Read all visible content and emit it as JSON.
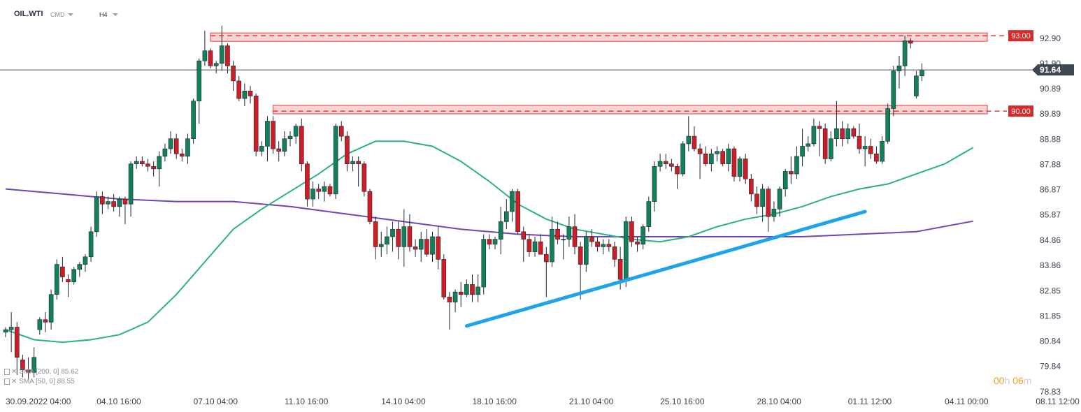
{
  "header": {
    "symbol": "OIL.WTI",
    "instrument_type": "CMD",
    "timeframe": "H4"
  },
  "legend": [
    {
      "name": "SMA",
      "params": "[200, 0]",
      "value": "85.62"
    },
    {
      "name": "SMA",
      "params": "[50, 0]",
      "value": "88.55"
    }
  ],
  "timer": {
    "hours": "00",
    "h_unit": "h",
    "minutes": "06",
    "m_unit": "m"
  },
  "icons": [
    "chevron-down-icon",
    "indicator-icon",
    "close-icon"
  ],
  "colors": {
    "bull": "#12815a",
    "bear": "#d01c24",
    "sma50": "#2bb37d",
    "sma200": "#7044b8",
    "trendline": "#1fa4e8",
    "resistance": "#e23b3b",
    "price_badge": "#3f4752"
  },
  "chart_data": {
    "type": "candlestick",
    "ylim": [
      78.83,
      94.2
    ],
    "y_ticks": [
      "92.90",
      "91.90",
      "90.89",
      "89.89",
      "88.88",
      "87.88",
      "86.87",
      "85.87",
      "84.86",
      "83.86",
      "82.85",
      "81.85",
      "80.84",
      "79.84",
      "78.83"
    ],
    "x_ticks": [
      "30.09.2022 04:00",
      "04.10 16:00",
      "07.10 04:00",
      "11.10 16:00",
      "14.10 04:00",
      "18.10 16:00",
      "21.10 04:00",
      "25.10 16:00",
      "28.10 04:00",
      "01.11 12:00",
      "04.11 00:00",
      "08.11 12:00"
    ],
    "x_tick_bar_index": [
      0,
      16,
      33,
      49,
      66,
      82,
      99,
      115,
      132,
      148,
      165,
      181
    ],
    "bars_total": 205,
    "current_price": {
      "label": "91.64",
      "value": 91.64
    },
    "levels": [
      {
        "label": "93.00",
        "value": 93.0,
        "zone_bottom": 92.88,
        "zone_top": 93.0,
        "zone_start_bar": 36
      },
      {
        "label": "90.00",
        "value": 90.0,
        "zone_bottom": 89.89,
        "zone_top": 90.12,
        "zone_start_bar": 47
      }
    ],
    "trendline": {
      "x": [
        81,
        151
      ],
      "y": [
        81.45,
        86.0
      ]
    },
    "sma50": {
      "x": [
        0,
        5,
        10,
        15,
        20,
        25,
        30,
        35,
        40,
        45,
        50,
        55,
        60,
        65,
        70,
        75,
        80,
        85,
        90,
        95,
        100,
        105,
        110,
        115,
        120,
        125,
        130,
        135,
        140,
        145,
        150,
        155,
        160,
        165,
        170
      ],
      "y": [
        81.3,
        80.9,
        80.8,
        80.9,
        81.1,
        81.6,
        82.7,
        84.0,
        85.3,
        86.1,
        86.8,
        87.5,
        88.3,
        88.8,
        88.8,
        88.6,
        88.0,
        87.2,
        86.3,
        85.7,
        85.3,
        85.1,
        84.9,
        84.8,
        85.0,
        85.4,
        85.7,
        85.9,
        86.2,
        86.6,
        86.9,
        87.1,
        87.5,
        87.9,
        88.55
      ]
    },
    "sma200": {
      "x": [
        0,
        10,
        20,
        30,
        40,
        50,
        60,
        70,
        80,
        90,
        100,
        110,
        120,
        130,
        140,
        150,
        160,
        170
      ],
      "y": [
        86.9,
        86.7,
        86.5,
        86.4,
        86.4,
        86.2,
        85.9,
        85.6,
        85.3,
        85.1,
        85.0,
        85.0,
        85.0,
        85.0,
        85.0,
        85.1,
        85.2,
        85.62
      ]
    },
    "candles": [
      [
        81.2,
        81.4,
        81.0,
        81.3
      ],
      [
        81.3,
        82.0,
        80.4,
        81.4
      ],
      [
        81.4,
        81.6,
        79.5,
        80.2
      ],
      [
        80.1,
        80.3,
        79.4,
        79.7
      ],
      [
        79.7,
        80.2,
        79.3,
        79.6
      ],
      [
        79.6,
        80.6,
        79.4,
        80.2
      ],
      [
        81.3,
        81.8,
        81.1,
        81.7
      ],
      [
        81.7,
        82.0,
        81.2,
        81.6
      ],
      [
        81.6,
        82.9,
        81.3,
        82.7
      ],
      [
        82.7,
        84.1,
        82.5,
        83.9
      ],
      [
        83.8,
        84.2,
        83.2,
        83.4
      ],
      [
        83.3,
        83.5,
        82.6,
        83.2
      ],
      [
        83.2,
        83.8,
        83.1,
        83.7
      ],
      [
        83.7,
        84.0,
        83.4,
        83.9
      ],
      [
        83.9,
        84.3,
        83.6,
        84.2
      ],
      [
        84.2,
        85.4,
        84.0,
        85.2
      ],
      [
        85.2,
        86.8,
        85.0,
        86.6
      ],
      [
        86.6,
        86.8,
        85.9,
        86.3
      ],
      [
        86.3,
        86.6,
        86.1,
        86.4
      ],
      [
        86.4,
        86.7,
        86.0,
        86.2
      ],
      [
        86.2,
        86.6,
        85.8,
        86.5
      ],
      [
        86.5,
        86.6,
        85.5,
        86.3
      ],
      [
        86.3,
        88.0,
        85.8,
        87.9
      ],
      [
        87.9,
        88.2,
        87.7,
        88.0
      ],
      [
        88.0,
        88.2,
        87.8,
        87.9
      ],
      [
        87.9,
        88.1,
        87.6,
        87.8
      ],
      [
        87.8,
        88.0,
        87.4,
        87.7
      ],
      [
        87.7,
        88.4,
        87.0,
        88.2
      ],
      [
        88.2,
        88.7,
        88.0,
        88.5
      ],
      [
        88.5,
        89.2,
        88.3,
        88.9
      ],
      [
        88.9,
        89.1,
        88.1,
        88.3
      ],
      [
        88.3,
        88.5,
        88.0,
        88.2
      ],
      [
        88.2,
        89.1,
        87.9,
        88.9
      ],
      [
        88.9,
        90.5,
        88.7,
        90.4
      ],
      [
        90.4,
        92.1,
        89.5,
        92.0
      ],
      [
        92.0,
        93.2,
        91.8,
        92.4
      ],
      [
        92.4,
        92.5,
        91.7,
        91.8
      ],
      [
        91.8,
        92.0,
        91.5,
        91.9
      ],
      [
        91.9,
        93.4,
        91.6,
        92.6
      ],
      [
        92.6,
        92.7,
        91.5,
        91.8
      ],
      [
        91.8,
        92.0,
        90.8,
        91.2
      ],
      [
        91.2,
        91.4,
        90.4,
        90.5
      ],
      [
        90.5,
        91.1,
        90.2,
        90.8
      ],
      [
        90.8,
        91.0,
        90.3,
        90.6
      ],
      [
        90.6,
        90.7,
        88.2,
        88.4
      ],
      [
        88.4,
        88.8,
        88.2,
        88.6
      ],
      [
        88.6,
        89.8,
        88.0,
        89.6
      ],
      [
        89.6,
        89.8,
        88.3,
        88.5
      ],
      [
        88.5,
        88.8,
        88.0,
        88.4
      ],
      [
        88.4,
        89.2,
        88.2,
        88.9
      ],
      [
        88.9,
        89.2,
        88.6,
        89.0
      ],
      [
        89.0,
        89.5,
        88.7,
        89.4
      ],
      [
        89.4,
        89.7,
        87.6,
        87.9
      ],
      [
        87.9,
        88.0,
        86.2,
        86.5
      ],
      [
        86.5,
        87.2,
        86.2,
        86.9
      ],
      [
        86.9,
        87.1,
        86.5,
        86.8
      ],
      [
        86.8,
        87.2,
        86.4,
        87.0
      ],
      [
        87.0,
        87.1,
        86.6,
        86.7
      ],
      [
        86.7,
        89.5,
        86.5,
        89.4
      ],
      [
        89.4,
        89.6,
        88.8,
        89.0
      ],
      [
        89.0,
        89.2,
        87.6,
        87.9
      ],
      [
        87.9,
        88.2,
        87.6,
        88.0
      ],
      [
        88.0,
        88.2,
        87.0,
        87.9
      ],
      [
        87.9,
        88.0,
        86.6,
        86.8
      ],
      [
        86.8,
        86.9,
        85.5,
        85.6
      ],
      [
        85.6,
        85.8,
        84.1,
        84.6
      ],
      [
        84.6,
        85.2,
        84.2,
        84.7
      ],
      [
        84.7,
        85.4,
        84.3,
        85.0
      ],
      [
        85.0,
        85.6,
        84.4,
        85.3
      ],
      [
        85.3,
        85.6,
        84.1,
        84.6
      ],
      [
        84.6,
        86.1,
        83.8,
        85.4
      ],
      [
        85.4,
        85.9,
        84.4,
        84.6
      ],
      [
        84.6,
        84.9,
        84.2,
        84.5
      ],
      [
        84.5,
        85.2,
        84.0,
        84.9
      ],
      [
        84.9,
        85.3,
        84.2,
        84.3
      ],
      [
        84.3,
        85.2,
        84.0,
        85.0
      ],
      [
        85.0,
        85.4,
        83.7,
        84.1
      ],
      [
        84.1,
        84.3,
        82.5,
        82.6
      ],
      [
        82.6,
        82.8,
        81.3,
        82.4
      ],
      [
        82.4,
        82.9,
        82.0,
        82.8
      ],
      [
        82.8,
        83.2,
        82.2,
        82.7
      ],
      [
        82.7,
        83.3,
        82.6,
        83.1
      ],
      [
        83.1,
        83.5,
        82.4,
        82.7
      ],
      [
        82.7,
        83.5,
        82.4,
        83.0
      ],
      [
        83.0,
        85.1,
        82.7,
        84.9
      ],
      [
        84.9,
        85.1,
        84.5,
        84.7
      ],
      [
        84.7,
        85.0,
        84.5,
        84.9
      ],
      [
        84.9,
        86.2,
        84.3,
        85.6
      ],
      [
        85.6,
        86.5,
        85.3,
        86.0
      ],
      [
        86.0,
        86.9,
        85.6,
        86.8
      ],
      [
        86.8,
        86.9,
        85.1,
        85.2
      ],
      [
        85.2,
        85.4,
        84.0,
        84.9
      ],
      [
        84.9,
        85.1,
        84.2,
        84.4
      ],
      [
        84.4,
        85.0,
        84.2,
        84.8
      ],
      [
        84.8,
        85.1,
        84.3,
        84.3
      ],
      [
        84.3,
        84.6,
        82.6,
        84.0
      ],
      [
        84.0,
        85.8,
        83.8,
        85.3
      ],
      [
        85.3,
        85.6,
        84.7,
        84.9
      ],
      [
        84.9,
        85.1,
        84.1,
        84.9
      ],
      [
        84.9,
        85.8,
        84.6,
        85.4
      ],
      [
        85.4,
        85.9,
        84.3,
        84.6
      ],
      [
        84.6,
        84.8,
        82.5,
        83.9
      ],
      [
        83.9,
        85.2,
        83.6,
        85.0
      ],
      [
        85.0,
        85.3,
        84.6,
        84.8
      ],
      [
        84.8,
        85.0,
        84.4,
        84.6
      ],
      [
        84.6,
        84.9,
        84.3,
        84.7
      ],
      [
        84.7,
        84.9,
        84.4,
        84.6
      ],
      [
        84.6,
        84.8,
        83.8,
        84.1
      ],
      [
        84.1,
        84.6,
        82.9,
        83.3
      ],
      [
        83.3,
        85.8,
        83.0,
        85.6
      ],
      [
        85.6,
        85.8,
        84.6,
        84.8
      ],
      [
        84.8,
        85.0,
        84.4,
        84.7
      ],
      [
        84.7,
        85.5,
        84.5,
        85.4
      ],
      [
        85.4,
        86.6,
        85.2,
        86.4
      ],
      [
        86.4,
        88.0,
        86.0,
        87.8
      ],
      [
        87.8,
        88.3,
        87.6,
        88.0
      ],
      [
        88.0,
        88.3,
        87.7,
        87.9
      ],
      [
        87.9,
        88.1,
        87.6,
        87.8
      ],
      [
        87.8,
        87.9,
        86.9,
        87.5
      ],
      [
        87.5,
        88.8,
        87.4,
        88.7
      ],
      [
        88.7,
        89.8,
        88.4,
        89.0
      ],
      [
        89.0,
        89.4,
        88.4,
        88.5
      ],
      [
        88.5,
        88.7,
        87.3,
        88.3
      ],
      [
        88.3,
        88.6,
        87.8,
        87.9
      ],
      [
        87.9,
        88.5,
        87.6,
        88.3
      ],
      [
        88.3,
        88.6,
        88.0,
        88.4
      ],
      [
        88.4,
        88.5,
        87.8,
        87.9
      ],
      [
        87.9,
        88.7,
        87.6,
        88.5
      ],
      [
        88.5,
        88.6,
        87.2,
        87.4
      ],
      [
        87.4,
        88.2,
        87.2,
        88.1
      ],
      [
        88.1,
        88.3,
        87.1,
        87.3
      ],
      [
        87.3,
        87.5,
        86.4,
        86.7
      ],
      [
        86.7,
        87.0,
        85.9,
        86.2
      ],
      [
        86.2,
        87.1,
        85.6,
        86.9
      ],
      [
        86.9,
        87.0,
        85.2,
        85.8
      ],
      [
        85.8,
        86.4,
        85.6,
        86.1
      ],
      [
        86.1,
        87.0,
        85.8,
        86.9
      ],
      [
        86.9,
        87.7,
        86.6,
        87.6
      ],
      [
        87.6,
        88.2,
        87.1,
        87.5
      ],
      [
        87.5,
        88.6,
        87.3,
        88.2
      ],
      [
        88.2,
        89.3,
        87.8,
        88.6
      ],
      [
        88.6,
        89.0,
        88.4,
        88.7
      ],
      [
        88.7,
        89.7,
        88.6,
        89.4
      ],
      [
        89.4,
        89.6,
        88.2,
        89.3
      ],
      [
        89.3,
        89.5,
        87.9,
        88.1
      ],
      [
        88.1,
        89.2,
        88.0,
        88.9
      ],
      [
        88.9,
        90.4,
        88.6,
        89.3
      ],
      [
        89.3,
        89.6,
        88.6,
        88.9
      ],
      [
        88.9,
        89.5,
        88.7,
        89.3
      ],
      [
        89.3,
        89.4,
        88.9,
        89.0
      ],
      [
        89.0,
        89.5,
        88.3,
        88.5
      ],
      [
        88.5,
        89.0,
        87.8,
        88.6
      ],
      [
        88.6,
        88.9,
        88.1,
        88.3
      ],
      [
        88.3,
        88.6,
        87.9,
        88.0
      ],
      [
        88.0,
        89.0,
        87.9,
        88.8
      ],
      [
        88.8,
        90.3,
        88.7,
        90.1
      ],
      [
        90.1,
        91.8,
        89.8,
        91.6
      ],
      [
        91.6,
        92.2,
        90.9,
        91.8
      ],
      [
        91.8,
        93.0,
        91.4,
        92.8
      ],
      [
        92.8,
        92.9,
        92.5,
        92.7
      ],
      [
        90.6,
        91.6,
        90.5,
        91.4
      ],
      [
        91.4,
        91.9,
        91.2,
        91.64
      ]
    ]
  }
}
